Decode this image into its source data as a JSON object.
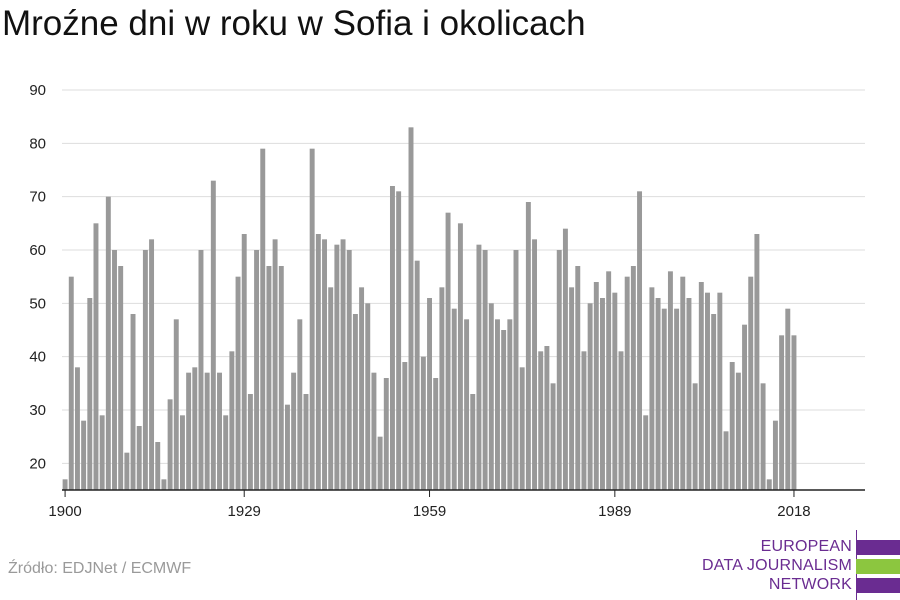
{
  "title": "Mroźne dni w roku w Sofia i okolicach",
  "source": "Źródło: EDJNet / ECMWF",
  "logo": {
    "lines": [
      "EUROPEAN",
      "DATA JOURNALISM",
      "NETWORK"
    ],
    "colors": {
      "purple": "#6a2c91",
      "green": "#8cc63f"
    }
  },
  "chart_data": {
    "type": "bar",
    "title": "Mroźne dni w roku w Sofia i okolicach",
    "xlabel": "",
    "ylabel": "",
    "ylim": [
      15,
      90
    ],
    "y_ticks": [
      20,
      30,
      40,
      50,
      60,
      70,
      80,
      90
    ],
    "x_ticks": [
      1900,
      1929,
      1959,
      1989,
      2018
    ],
    "grid": true,
    "bar_color": "#999999",
    "x": [
      1900,
      1901,
      1902,
      1903,
      1904,
      1905,
      1906,
      1907,
      1908,
      1909,
      1910,
      1911,
      1912,
      1913,
      1914,
      1915,
      1916,
      1917,
      1918,
      1919,
      1920,
      1921,
      1922,
      1923,
      1924,
      1925,
      1926,
      1927,
      1928,
      1929,
      1930,
      1931,
      1932,
      1933,
      1934,
      1935,
      1936,
      1937,
      1938,
      1939,
      1940,
      1941,
      1942,
      1943,
      1944,
      1945,
      1946,
      1947,
      1948,
      1949,
      1950,
      1951,
      1952,
      1953,
      1954,
      1955,
      1956,
      1957,
      1958,
      1959,
      1960,
      1961,
      1962,
      1963,
      1964,
      1965,
      1966,
      1967,
      1968,
      1969,
      1970,
      1971,
      1972,
      1973,
      1974,
      1975,
      1976,
      1977,
      1978,
      1979,
      1980,
      1981,
      1982,
      1983,
      1984,
      1985,
      1986,
      1987,
      1988,
      1989,
      1990,
      1991,
      1992,
      1993,
      1994,
      1995,
      1996,
      1997,
      1998,
      1999,
      2000,
      2001,
      2002,
      2003,
      2004,
      2005,
      2006,
      2007,
      2008,
      2009,
      2010,
      2011,
      2012,
      2013,
      2014,
      2015,
      2016,
      2017,
      2018
    ],
    "values": [
      17,
      55,
      38,
      28,
      51,
      65,
      29,
      70,
      60,
      57,
      22,
      48,
      27,
      60,
      62,
      24,
      17,
      32,
      47,
      29,
      37,
      38,
      60,
      37,
      73,
      37,
      29,
      41,
      55,
      63,
      33,
      60,
      79,
      57,
      62,
      57,
      31,
      37,
      47,
      33,
      79,
      63,
      62,
      53,
      61,
      62,
      60,
      48,
      53,
      50,
      37,
      25,
      36,
      72,
      71,
      39,
      83,
      58,
      40,
      51,
      36,
      53,
      67,
      49,
      65,
      47,
      33,
      61,
      60,
      50,
      47,
      45,
      47,
      60,
      38,
      69,
      62,
      41,
      42,
      35,
      60,
      64,
      53,
      57,
      41,
      50,
      54,
      51,
      56,
      52,
      41,
      55,
      57,
      71,
      29,
      53,
      51,
      49,
      56,
      49,
      55,
      51,
      35,
      54,
      52,
      48,
      52,
      26,
      39,
      37,
      46,
      55,
      63,
      35,
      17,
      28,
      44,
      49,
      44
    ]
  }
}
